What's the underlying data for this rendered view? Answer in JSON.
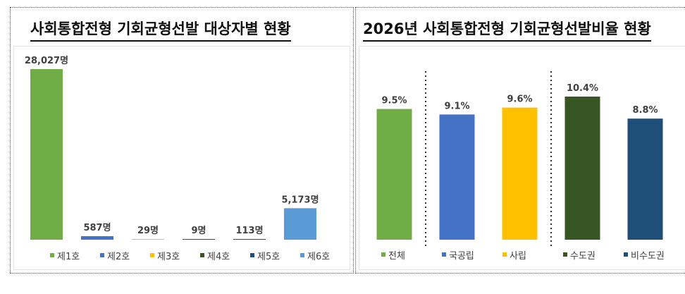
{
  "chart_data": [
    {
      "type": "bar",
      "title": "사회통합전형 기회균형선발 대상자별 현황",
      "categories": [
        "제1호",
        "제2호",
        "제3호",
        "제4호",
        "제5호",
        "제6호"
      ],
      "values": [
        28027,
        587,
        29,
        9,
        113,
        5173
      ],
      "data_labels": [
        "28,027명",
        "587명",
        "29명",
        "9명",
        "113명",
        "5,173명"
      ],
      "colors": [
        "#70ad47",
        "#4472c4",
        "#ffc000",
        "#375623",
        "#1f4e79",
        "#5b9bd5"
      ],
      "ylim": [
        0,
        28027
      ],
      "grid": false,
      "legend": "bottom"
    },
    {
      "type": "bar",
      "title": "2026년 사회통합전형 기회균형선발비율 현황",
      "categories": [
        "전체",
        "국공립",
        "사립",
        "수도권",
        "비수도권"
      ],
      "values": [
        9.5,
        9.1,
        9.6,
        10.4,
        8.8
      ],
      "data_labels": [
        "9.5%",
        "9.1%",
        "9.6%",
        "10.4%",
        "8.8%"
      ],
      "colors": [
        "#70ad47",
        "#4472c4",
        "#ffc000",
        "#375623",
        "#1f4e79"
      ],
      "ylim": [
        0,
        12.5
      ],
      "grid": false,
      "legend": "bottom",
      "separators_after": [
        0,
        2
      ]
    }
  ]
}
